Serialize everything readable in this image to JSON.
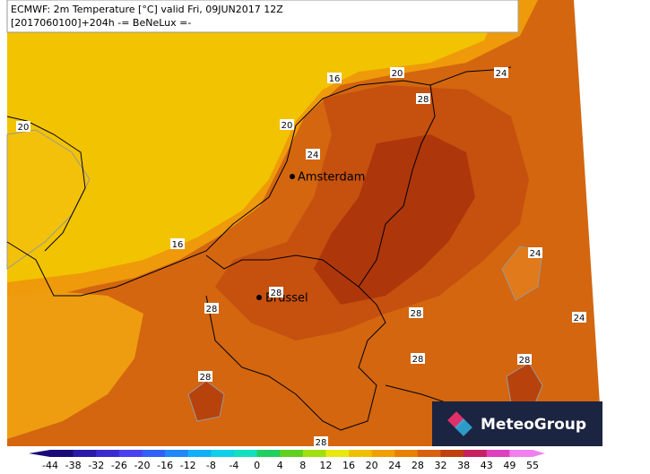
{
  "header": {
    "line1": "ECMWF: 2m Temperature [°C] valid Fri, 09JUN2017 12Z",
    "line2": "[2017060100]+204h -= BeNeLux =-"
  },
  "cities": [
    {
      "name": "Amsterdam"
    },
    {
      "name": "Brussel"
    }
  ],
  "contour_labels": [
    "20",
    "16",
    "20",
    "24",
    "28",
    "20",
    "24",
    "16",
    "24",
    "28",
    "28",
    "28",
    "24",
    "28",
    "28",
    "28",
    "28"
  ],
  "legend": {
    "labels": [
      "-44",
      "-38",
      "-32",
      "-26",
      "-20",
      "-16",
      "-12",
      "-8",
      "-4",
      "0",
      "4",
      "8",
      "12",
      "16",
      "20",
      "24",
      "28",
      "32",
      "38",
      "43",
      "49",
      "55"
    ],
    "colors": [
      "#1a0a78",
      "#2a1aa8",
      "#3a2ad0",
      "#4a40f0",
      "#3060f8",
      "#2088f8",
      "#10b0f8",
      "#10d0e8",
      "#10e0c0",
      "#20d060",
      "#60d020",
      "#a0e010",
      "#e8e810",
      "#f0c000",
      "#f0a000",
      "#e88000",
      "#d86010",
      "#c04010",
      "#c82060",
      "#e040c0",
      "#f080f0"
    ]
  },
  "logo": {
    "text": "MeteoGroup"
  }
}
